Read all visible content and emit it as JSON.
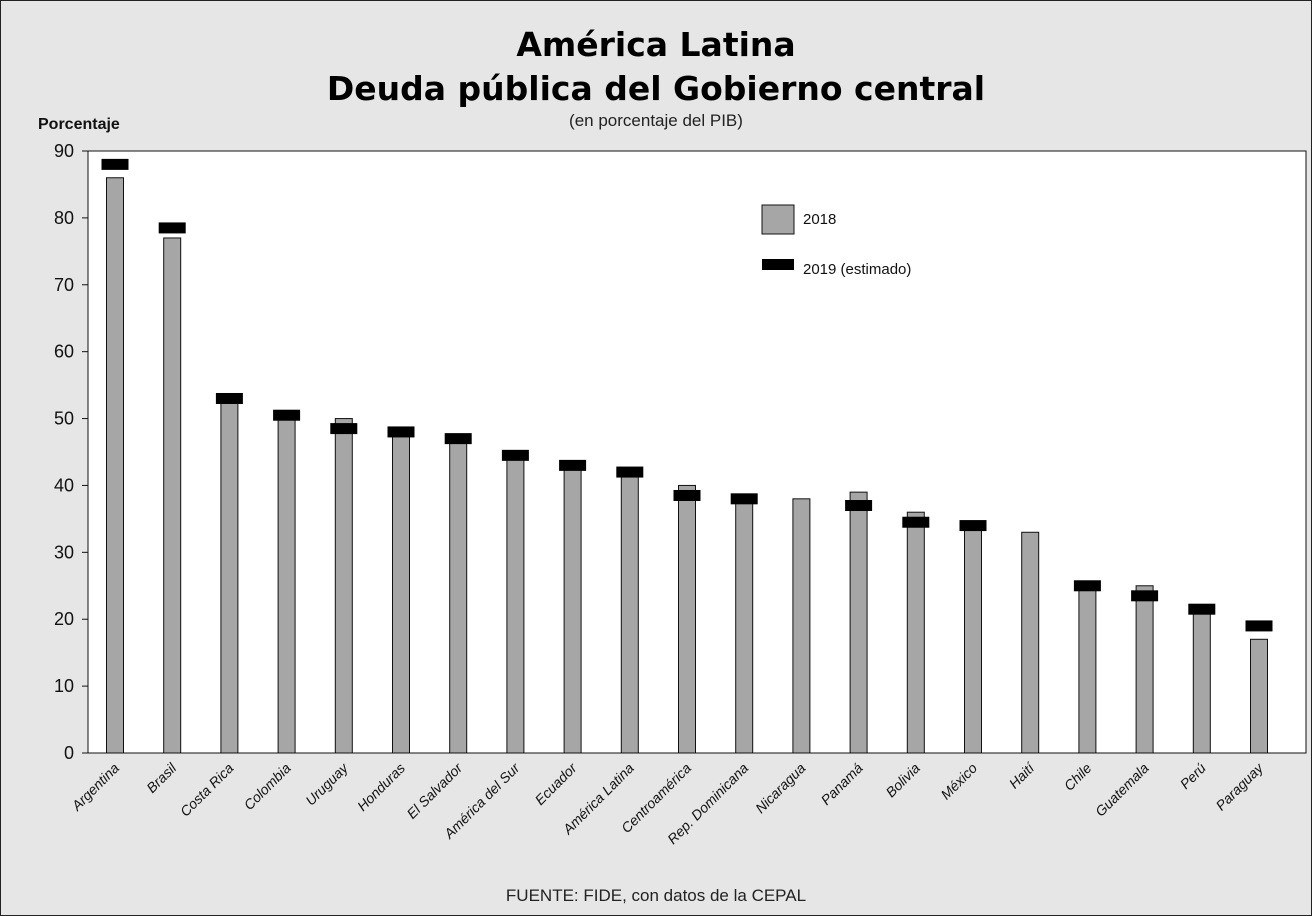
{
  "chart_data": {
    "type": "bar",
    "title": "América Latina",
    "subtitle": "Deuda pública del Gobierno central",
    "subtitle2": "(en porcentaje del PIB)",
    "ylabel": "Porcentaje",
    "xlabel": "",
    "source": "FUENTE: FIDE, con datos de la CEPAL",
    "ylim": [
      0,
      90
    ],
    "yticks": [
      0,
      10,
      20,
      30,
      40,
      50,
      60,
      70,
      80,
      90
    ],
    "grid": false,
    "legend_position": "top-right",
    "categories": [
      "Argentina",
      "Brasil",
      "Costa Rica",
      "Colombia",
      "Uruguay",
      "Honduras",
      "El Salvador",
      "América del Sur",
      "Ecuador",
      "América Latina",
      "Centroamérica",
      "Rep. Dominicana",
      "Nicaragua",
      "Panamá",
      "Bolivia",
      "México",
      "Haití",
      "Chile",
      "Guatemala",
      "Perú",
      "Paraguay"
    ],
    "series": [
      {
        "name": "2018",
        "mark": "bar",
        "color": "#a6a6a6",
        "values": [
          86,
          77,
          53,
          51,
          50,
          48,
          47,
          44.5,
          43,
          42,
          40,
          38,
          38,
          39,
          36,
          34,
          33,
          25,
          25,
          21,
          17
        ]
      },
      {
        "name": "2019 (estimado)",
        "mark": "marker",
        "color": "#000000",
        "values": [
          88,
          78.5,
          53,
          50.5,
          48.5,
          48,
          47,
          44.5,
          43,
          42,
          38.5,
          38,
          null,
          37,
          34.5,
          34,
          null,
          25,
          23.5,
          21.5,
          19
        ]
      }
    ]
  }
}
